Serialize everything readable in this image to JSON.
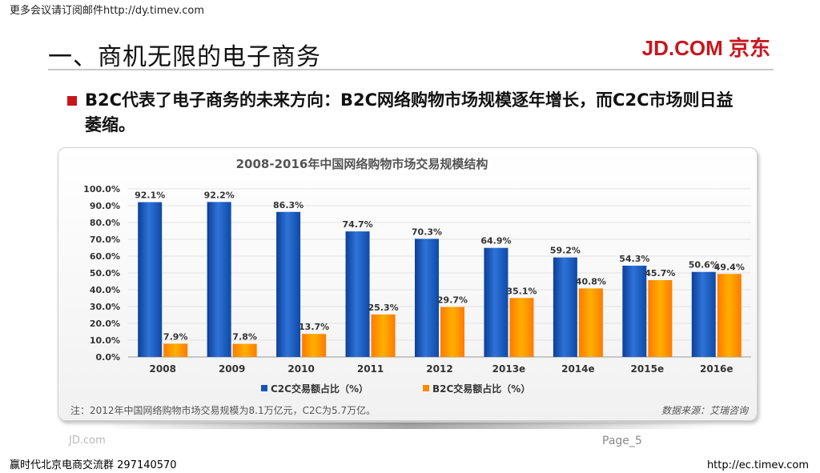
{
  "header": {
    "top_note": "更多会议请订阅邮件http://dy.timev.com",
    "title": "一、商机无限的电子商务",
    "logo": "JD.COM 京东"
  },
  "bullet": {
    "text": "B2C代表了电子商务的未来方向：B2C网络购物市场规模逐年增长，而C2C市场则日益萎缩。"
  },
  "footer": {
    "jd": "JD.com",
    "page": "Page_5",
    "left": "赢时代北京电商交流群 297140570",
    "right": "http://ec.timev.com"
  },
  "colors": {
    "brand_red": "#c8161d",
    "c2c_blue": "#1553b8",
    "b2c_orange": "#ff8a00"
  },
  "chart_data": {
    "type": "bar",
    "title": "2008-2016年中国网络购物市场交易规模结构",
    "categories": [
      "2008",
      "2009",
      "2010",
      "2011",
      "2012",
      "2013e",
      "2014e",
      "2015e",
      "2016e"
    ],
    "series": [
      {
        "name": "C2C交易额占比（%）",
        "values": [
          92.1,
          92.2,
          86.3,
          74.7,
          70.3,
          64.9,
          59.2,
          54.3,
          50.6
        ]
      },
      {
        "name": "B2C交易额占比（%）",
        "values": [
          7.9,
          7.8,
          13.7,
          25.3,
          29.7,
          35.1,
          40.8,
          45.7,
          49.4
        ]
      }
    ],
    "y_ticks": [
      "0.0%",
      "10.0%",
      "20.0%",
      "30.0%",
      "40.0%",
      "50.0%",
      "60.0%",
      "70.0%",
      "80.0%",
      "90.0%",
      "100.0%"
    ],
    "ylim": [
      0,
      100
    ],
    "legend": "bottom",
    "note": "注：2012年中国网络购物市场交易规模为8.1万亿元，C2C为5.7万亿。",
    "source": "数据来源：艾瑞咨询"
  }
}
